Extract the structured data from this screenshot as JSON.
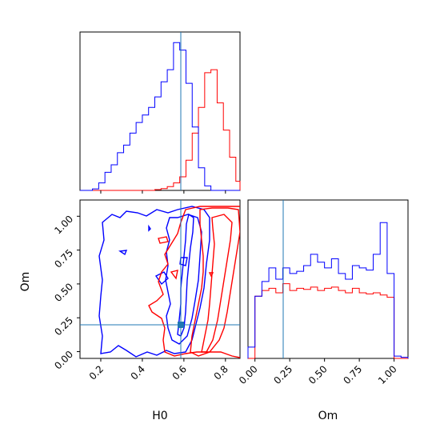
{
  "chart_data": {
    "type": "corner",
    "colors": {
      "series_a": "#ff0000",
      "series_b": "#0000ff",
      "truth": "#1f77b4"
    },
    "truth": {
      "H0": 0.58,
      "Om": 0.2
    },
    "panels": {
      "h0_hist": {
        "type": "histogram",
        "xlim": [
          0.1,
          0.87
        ],
        "bins": [
          0.1,
          0.13,
          0.16,
          0.19,
          0.22,
          0.25,
          0.28,
          0.31,
          0.34,
          0.37,
          0.4,
          0.43,
          0.46,
          0.49,
          0.52,
          0.55,
          0.58,
          0.61,
          0.64,
          0.67,
          0.7,
          0.73,
          0.76,
          0.79,
          0.82,
          0.85,
          0.87
        ],
        "series": [
          {
            "color": "red",
            "counts": [
              0,
              0,
              0,
              0,
              0,
              0,
              0,
              0,
              0,
              0,
              0,
              0,
              0.5,
              1.2,
              2.5,
              5,
              9,
              20,
              38,
              55,
              78,
              80,
              58,
              40,
              22,
              6
            ]
          },
          {
            "color": "blue",
            "counts": [
              0,
              0,
              1,
              5,
              12,
              17,
              25,
              30,
              38,
              45,
              50,
              55,
              62,
              72,
              80,
              98,
              93,
              71,
              42,
              15,
              3,
              0,
              0,
              0,
              0,
              0
            ]
          }
        ]
      },
      "om_hist": {
        "type": "histogram",
        "xlim": [
          -0.05,
          1.1
        ],
        "xticks": [
          "0.00",
          "0.25",
          "0.50",
          "0.75",
          "1.00"
        ],
        "xlabel": "Om",
        "bins": [
          -0.05,
          0,
          0.05,
          0.1,
          0.15,
          0.2,
          0.25,
          0.3,
          0.35,
          0.4,
          0.45,
          0.5,
          0.55,
          0.6,
          0.65,
          0.7,
          0.75,
          0.8,
          0.85,
          0.9,
          0.95,
          1.0,
          1.05,
          1.1
        ],
        "series": [
          {
            "color": "red",
            "counts": [
              0,
              55,
              60,
              62,
              58,
              66,
              60,
              62,
              61,
              63,
              60,
              62,
              63,
              60,
              58,
              62,
              58,
              57,
              58,
              56,
              54,
              0,
              0
            ]
          },
          {
            "color": "blue",
            "counts": [
              10,
              55,
              68,
              80,
              70,
              80,
              75,
              77,
              82,
              92,
              85,
              80,
              88,
              75,
              70,
              82,
              80,
              78,
              92,
              120,
              75,
              2,
              1
            ]
          }
        ]
      },
      "joint": {
        "type": "contour",
        "xlim": [
          0.1,
          0.87
        ],
        "ylim": [
          -0.05,
          1.12
        ],
        "xticks": [
          "0.2",
          "0.4",
          "0.6",
          "0.8"
        ],
        "yticks": [
          "0.00",
          "0.25",
          "0.50",
          "0.75",
          "1.00"
        ],
        "xlabel": "H0",
        "ylabel": "Om"
      }
    }
  }
}
